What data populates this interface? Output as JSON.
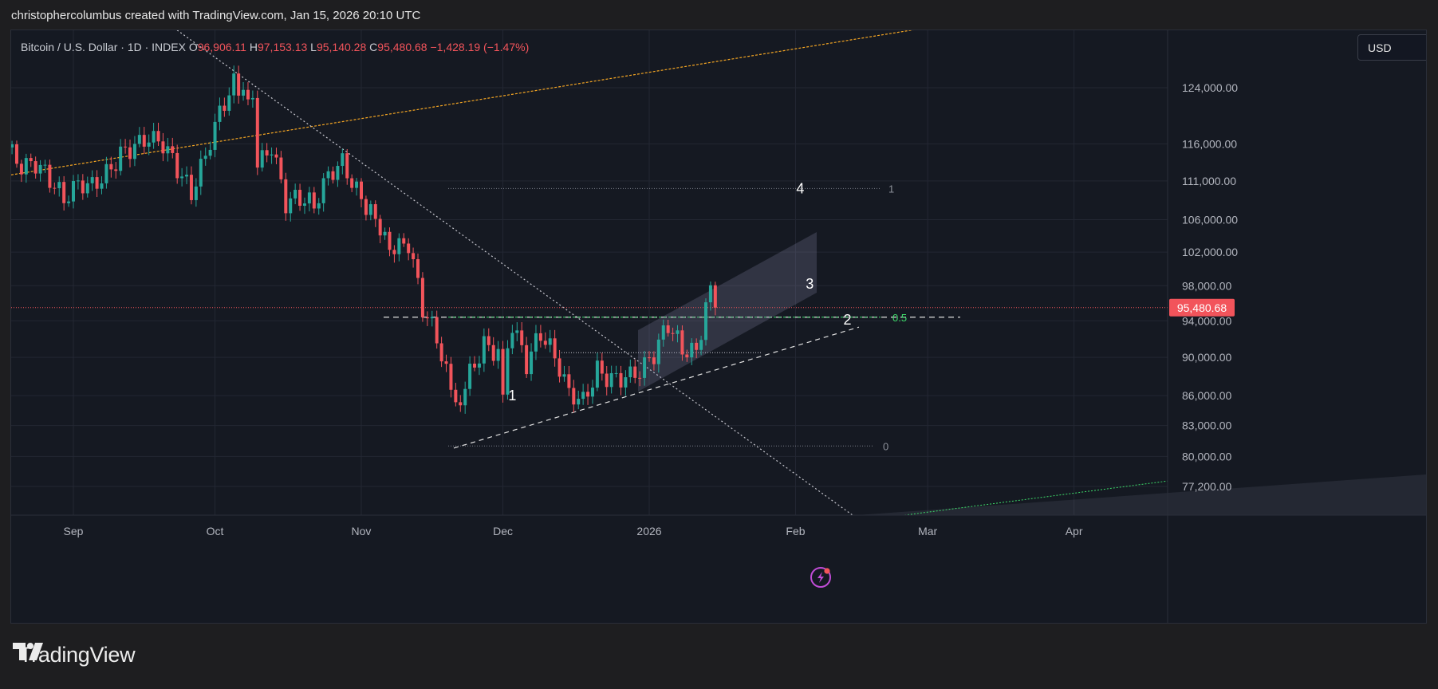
{
  "header": {
    "credit": "christophercolumbus created with TradingView.com, Jan 15, 2026 20:10 UTC"
  },
  "ohlc": {
    "symbol": "Bitcoin / U.S. Dollar · 1D · INDEX",
    "o_label": "O",
    "o_value": "96,906.11",
    "h_label": "H",
    "h_value": "97,153.13",
    "l_label": "L",
    "l_value": "95,140.28",
    "c_label": "C",
    "c_value": "95,480.68",
    "change": "−1,428.19 (−1.47%)"
  },
  "currency_button": "USD",
  "footer": {
    "brand": "TradingView"
  },
  "colors": {
    "up": "#26a69a",
    "down": "#f2545b",
    "background": "#151922",
    "price_label": "#f2545b"
  },
  "chart_data": {
    "type": "candlestick",
    "last_price": 95480.68,
    "last_price_label": "95,480.68",
    "y_scale": "log",
    "y_ticks": [
      {
        "v": 124000,
        "label": "124,000.00"
      },
      {
        "v": 116000,
        "label": "116,000.00"
      },
      {
        "v": 111000,
        "label": "111,000.00"
      },
      {
        "v": 106000,
        "label": "106,000.00"
      },
      {
        "v": 102000,
        "label": "102,000.00"
      },
      {
        "v": 98000,
        "label": "98,000.00"
      },
      {
        "v": 94000,
        "label": "94,000.00"
      },
      {
        "v": 90000,
        "label": "90,000.00"
      },
      {
        "v": 86000,
        "label": "86,000.00"
      },
      {
        "v": 83000,
        "label": "83,000.00"
      },
      {
        "v": 80000,
        "label": "80,000.00"
      },
      {
        "v": 77200,
        "label": "77,200.00"
      }
    ],
    "x_ticks": [
      {
        "date": "2025-09-01",
        "label": "Sep"
      },
      {
        "date": "2025-10-01",
        "label": "Oct"
      },
      {
        "date": "2025-11-01",
        "label": "Nov"
      },
      {
        "date": "2025-12-01",
        "label": "Dec"
      },
      {
        "date": "2026-01-01",
        "label": "2026"
      },
      {
        "date": "2026-02-01",
        "label": "Feb"
      },
      {
        "date": "2026-03-01",
        "label": "Mar"
      },
      {
        "date": "2026-04-01",
        "label": "Apr"
      }
    ],
    "closes": [
      {
        "date": "2025-08-18",
        "c": 115500
      },
      {
        "date": "2025-08-21",
        "c": 112700
      },
      {
        "date": "2025-08-24",
        "c": 113300
      },
      {
        "date": "2025-08-27",
        "c": 111300
      },
      {
        "date": "2025-08-30",
        "c": 108700
      },
      {
        "date": "2025-09-02",
        "c": 110800
      },
      {
        "date": "2025-09-05",
        "c": 110500
      },
      {
        "date": "2025-09-08",
        "c": 111900
      },
      {
        "date": "2025-09-11",
        "c": 114500
      },
      {
        "date": "2025-09-14",
        "c": 115600
      },
      {
        "date": "2025-09-17",
        "c": 116700
      },
      {
        "date": "2025-09-20",
        "c": 115900
      },
      {
        "date": "2025-09-23",
        "c": 112700
      },
      {
        "date": "2025-09-26",
        "c": 109400
      },
      {
        "date": "2025-09-29",
        "c": 114500
      },
      {
        "date": "2025-10-02",
        "c": 120600
      },
      {
        "date": "2025-10-05",
        "c": 124700
      },
      {
        "date": "2025-10-07",
        "c": 122300
      },
      {
        "date": "2025-10-09",
        "c": 121700
      },
      {
        "date": "2025-10-10",
        "c": 112900
      },
      {
        "date": "2025-10-13",
        "c": 115500
      },
      {
        "date": "2025-10-16",
        "c": 108100
      },
      {
        "date": "2025-10-19",
        "c": 108900
      },
      {
        "date": "2025-10-22",
        "c": 107900
      },
      {
        "date": "2025-10-25",
        "c": 111900
      },
      {
        "date": "2025-10-28",
        "c": 113600
      },
      {
        "date": "2025-10-31",
        "c": 109600
      },
      {
        "date": "2025-11-03",
        "c": 107000
      },
      {
        "date": "2025-11-05",
        "c": 103800
      },
      {
        "date": "2025-11-08",
        "c": 102300
      },
      {
        "date": "2025-11-11",
        "c": 103000
      },
      {
        "date": "2025-11-14",
        "c": 95500
      },
      {
        "date": "2025-11-17",
        "c": 92200
      },
      {
        "date": "2025-11-20",
        "c": 86600
      },
      {
        "date": "2025-11-21",
        "c": 84700
      },
      {
        "date": "2025-11-24",
        "c": 88300
      },
      {
        "date": "2025-11-27",
        "c": 91300
      },
      {
        "date": "2025-11-30",
        "c": 90400
      },
      {
        "date": "2025-12-01",
        "c": 86300
      },
      {
        "date": "2025-12-03",
        "c": 93500
      },
      {
        "date": "2025-12-06",
        "c": 89300
      },
      {
        "date": "2025-12-09",
        "c": 92700
      },
      {
        "date": "2025-12-12",
        "c": 90200
      },
      {
        "date": "2025-12-15",
        "c": 86400
      },
      {
        "date": "2025-12-18",
        "c": 85500
      },
      {
        "date": "2025-12-21",
        "c": 88600
      },
      {
        "date": "2025-12-24",
        "c": 87600
      },
      {
        "date": "2025-12-27",
        "c": 87800
      },
      {
        "date": "2025-12-30",
        "c": 88400
      },
      {
        "date": "2026-01-02",
        "c": 90300
      },
      {
        "date": "2026-01-05",
        "c": 93700
      },
      {
        "date": "2026-01-08",
        "c": 90900
      },
      {
        "date": "2026-01-11",
        "c": 90700
      },
      {
        "date": "2026-01-13",
        "c": 95300
      },
      {
        "date": "2026-01-14",
        "c": 96900
      },
      {
        "date": "2026-01-15",
        "c": 95480
      }
    ],
    "annotations": [
      {
        "text": "1",
        "date": "2025-12-03",
        "price": 86000
      },
      {
        "text": "2",
        "date": "2026-02-12",
        "price": 94100
      },
      {
        "text": "3",
        "date": "2026-02-04",
        "price": 98200
      },
      {
        "text": "4",
        "date": "2026-02-02",
        "price": 110000
      }
    ],
    "fib_labels": [
      {
        "text": "1",
        "price": 110000
      },
      {
        "text": "0.5",
        "price": 94400
      },
      {
        "text": "0",
        "price": 81000
      }
    ]
  }
}
